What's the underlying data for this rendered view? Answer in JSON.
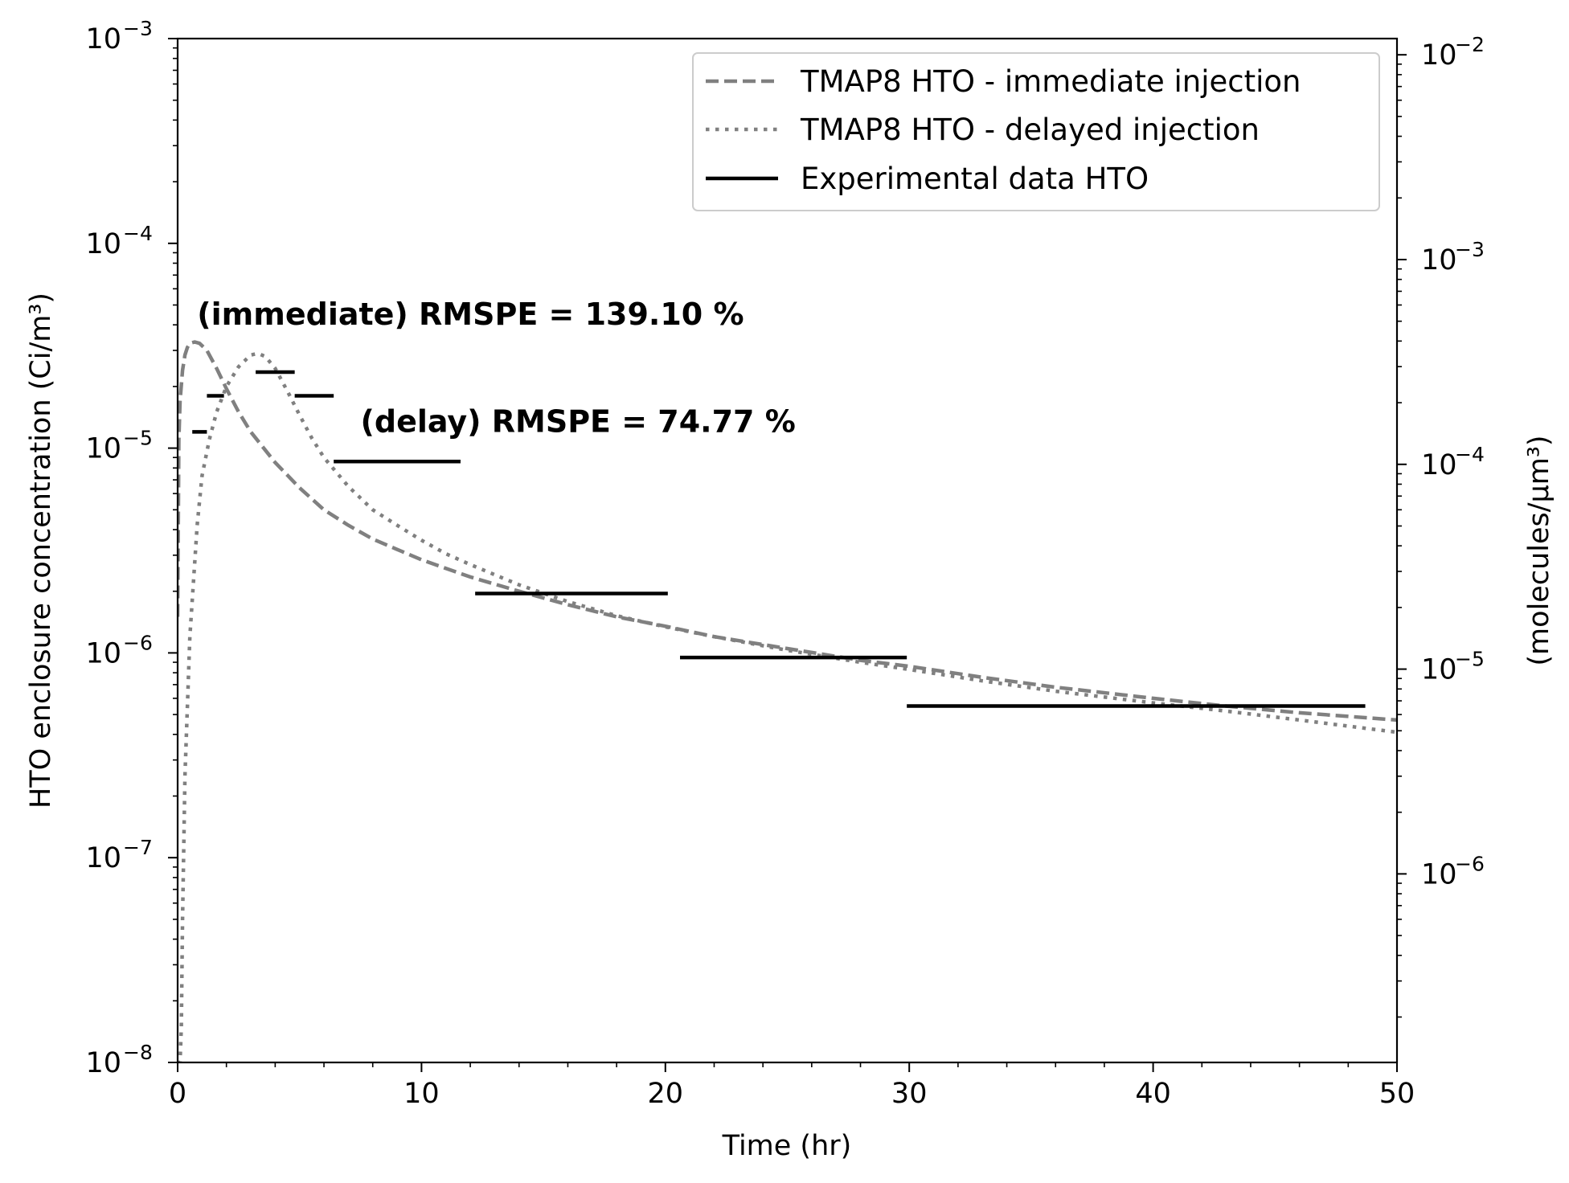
{
  "chart_data": {
    "type": "line",
    "xlabel": "Time (hr)",
    "ylabel_left": "HTO enclosure concentration (Ci/m³)",
    "ylabel_right": "(molecules/μm³)",
    "xlim": [
      0,
      50
    ],
    "ylim_left": [
      1e-08,
      0.001
    ],
    "ylim_right": [
      1.2e-07,
      0.012
    ],
    "y_scale": "log",
    "grid": false,
    "legend_position": "top-right",
    "x_ticks": [
      0,
      10,
      20,
      30,
      40,
      50
    ],
    "y_ticks_left": [
      {
        "value": 1e-08,
        "base": "10",
        "exp": "−8"
      },
      {
        "value": 1e-07,
        "base": "10",
        "exp": "−7"
      },
      {
        "value": 1e-06,
        "base": "10",
        "exp": "−6"
      },
      {
        "value": 1e-05,
        "base": "10",
        "exp": "−5"
      },
      {
        "value": 0.0001,
        "base": "10",
        "exp": "−4"
      },
      {
        "value": 0.001,
        "base": "10",
        "exp": "−3"
      }
    ],
    "y_ticks_right": [
      {
        "value": 1e-06,
        "base": "10",
        "exp": "−6"
      },
      {
        "value": 1e-05,
        "base": "10",
        "exp": "−5"
      },
      {
        "value": 0.0001,
        "base": "10",
        "exp": "−4"
      },
      {
        "value": 0.001,
        "base": "10",
        "exp": "−3"
      },
      {
        "value": 0.01,
        "base": "10",
        "exp": "−2"
      }
    ],
    "series": [
      {
        "name": "TMAP8 HTO - immediate injection",
        "style": "dashed",
        "color": "#808080",
        "x": [
          0,
          0.05,
          0.1,
          0.2,
          0.3,
          0.4,
          0.5,
          0.7,
          0.9,
          1.2,
          1.6,
          2.0,
          2.5,
          3.0,
          4.0,
          5.0,
          6.0,
          7.0,
          8.0,
          9.0,
          10,
          12,
          14,
          16,
          18,
          20,
          22,
          25,
          28,
          30,
          33,
          36,
          40,
          43,
          46,
          50
        ],
        "y": [
          1.5e-06,
          1.1e-05,
          1.7e-05,
          2.4e-05,
          2.85e-05,
          3.1e-05,
          3.25e-05,
          3.3e-05,
          3.25e-05,
          3e-05,
          2.45e-05,
          1.95e-05,
          1.5e-05,
          1.2e-05,
          8.5e-06,
          6.4e-06,
          5e-06,
          4.2e-06,
          3.6e-06,
          3.2e-06,
          2.85e-06,
          2.35e-06,
          2e-06,
          1.72e-06,
          1.5e-06,
          1.35e-06,
          1.2e-06,
          1.05e-06,
          9.2e-07,
          8.6e-07,
          7.6e-07,
          6.8e-07,
          6e-07,
          5.5e-07,
          5.1e-07,
          4.7e-07
        ]
      },
      {
        "name": "TMAP8 HTO - delayed injection",
        "style": "dotted",
        "color": "#808080",
        "x": [
          0,
          0.1,
          0.15,
          0.2,
          0.3,
          0.5,
          0.8,
          1.0,
          1.3,
          1.6,
          2.0,
          2.5,
          3.0,
          3.3,
          3.6,
          4.0,
          4.5,
          5.0,
          5.5,
          6.0,
          7.0,
          8.0,
          9.0,
          10,
          11,
          12,
          14,
          16,
          18,
          20,
          22,
          25,
          28,
          30,
          33,
          36,
          40,
          43,
          46,
          50
        ],
        "y": [
          1e-08,
          1e-08,
          1.5e-08,
          5e-08,
          2.5e-07,
          1.2e-06,
          4.2e-06,
          7.3e-06,
          1.1e-05,
          1.5e-05,
          2e-05,
          2.5e-05,
          2.85e-05,
          2.9e-05,
          2.8e-05,
          2.45e-05,
          1.9e-05,
          1.45e-05,
          1.12e-05,
          9e-06,
          6.5e-06,
          5e-06,
          4.2e-06,
          3.55e-06,
          3.05e-06,
          2.7e-06,
          2.15e-06,
          1.78e-06,
          1.52e-06,
          1.34e-06,
          1.2e-06,
          1.03e-06,
          9e-07,
          8.3e-07,
          7.3e-07,
          6.5e-07,
          5.7e-07,
          5.2e-07,
          4.7e-07,
          4.1e-07
        ]
      },
      {
        "name": "Experimental data HTO",
        "style": "solid-steps",
        "color": "#000000",
        "segments": [
          {
            "x0": 0.6,
            "x1": 1.2,
            "y": 1.2e-05
          },
          {
            "x0": 1.2,
            "x1": 1.9,
            "y": 1.8e-05
          },
          {
            "x0": 3.2,
            "x1": 4.8,
            "y": 2.35e-05
          },
          {
            "x0": 4.8,
            "x1": 6.4,
            "y": 1.8e-05
          },
          {
            "x0": 6.4,
            "x1": 11.6,
            "y": 8.6e-06
          },
          {
            "x0": 12.2,
            "x1": 20.1,
            "y": 1.95e-06
          },
          {
            "x0": 20.6,
            "x1": 29.9,
            "y": 9.5e-07
          },
          {
            "x0": 29.9,
            "x1": 48.7,
            "y": 5.5e-07
          }
        ]
      }
    ],
    "annotations": [
      {
        "text": "(immediate) RMSPE = 139.10 %",
        "x": 0.8,
        "y": 4e-05
      },
      {
        "text": "(delay) RMSPE = 74.77 %",
        "x": 7.5,
        "y": 1.2e-05
      }
    ]
  }
}
